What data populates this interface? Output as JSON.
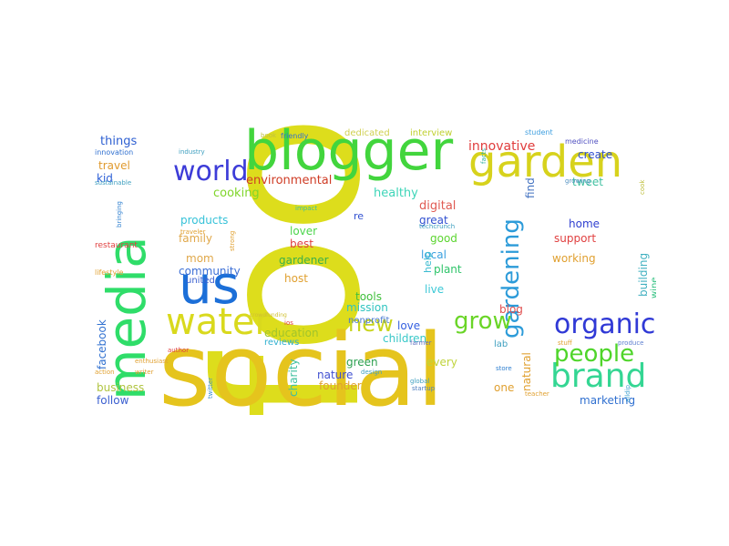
{
  "words": [
    {
      "text": "food",
      "color": "#dddd1c"
    },
    {
      "text": "social",
      "color": "#e5c41d"
    },
    {
      "text": "blogger",
      "color": "#42d53d"
    },
    {
      "text": "media",
      "color": "#2fdd69"
    },
    {
      "text": "us",
      "color": "#1c6fd8"
    },
    {
      "text": "garden",
      "color": "#d7d21c"
    },
    {
      "text": "water",
      "color": "#d9d91d"
    },
    {
      "text": "brand",
      "color": "#34d693"
    },
    {
      "text": "world",
      "color": "#3d3cd8"
    },
    {
      "text": "organic",
      "color": "#3039d6"
    },
    {
      "text": "people",
      "color": "#4fd52a"
    },
    {
      "text": "gardening",
      "color": "#2c9bd9"
    },
    {
      "text": "grow",
      "color": "#6ad527"
    },
    {
      "text": "new",
      "color": "#c8d41c"
    },
    {
      "text": "innovative",
      "color": "#e03c3c"
    },
    {
      "text": "environmental",
      "color": "#cf3c25"
    },
    {
      "text": "cooking",
      "color": "#7fd52a"
    },
    {
      "text": "healthy",
      "color": "#3ed5b8"
    },
    {
      "text": "digital",
      "color": "#e05a52"
    },
    {
      "text": "things",
      "color": "#2e60d2"
    },
    {
      "text": "travel",
      "color": "#e09a2e"
    },
    {
      "text": "kid",
      "color": "#2b5ed6"
    },
    {
      "text": "products",
      "color": "#36c2d8"
    },
    {
      "text": "family",
      "color": "#e0a84a"
    },
    {
      "text": "mom",
      "color": "#e0a84a"
    },
    {
      "text": "community",
      "color": "#3c6fd6"
    },
    {
      "text": "lover",
      "color": "#4cd54c"
    },
    {
      "text": "best",
      "color": "#e04040"
    },
    {
      "text": "gardener",
      "color": "#3db04a"
    },
    {
      "text": "host",
      "color": "#e0a030"
    },
    {
      "text": "great",
      "color": "#3050d0"
    },
    {
      "text": "good",
      "color": "#5cd530"
    },
    {
      "text": "local",
      "color": "#3aa0e0"
    },
    {
      "text": "plant",
      "color": "#2fc46a"
    },
    {
      "text": "live",
      "color": "#3cc8d6"
    },
    {
      "text": "help",
      "color": "#3abbd0"
    },
    {
      "text": "tools",
      "color": "#40c03c"
    },
    {
      "text": "mission",
      "color": "#30c4c0"
    },
    {
      "text": "education",
      "color": "#a0c42c"
    },
    {
      "text": "nonprofit",
      "color": "#4a7ad0"
    },
    {
      "text": "love",
      "color": "#3560e0"
    },
    {
      "text": "children",
      "color": "#38c8c8"
    },
    {
      "text": "green",
      "color": "#2ca050"
    },
    {
      "text": "every",
      "color": "#c0d43c"
    },
    {
      "text": "nature",
      "color": "#4050d0"
    },
    {
      "text": "founder",
      "color": "#e0a030"
    },
    {
      "text": "business",
      "color": "#b0c440"
    },
    {
      "text": "follow",
      "color": "#3c60d0"
    },
    {
      "text": "charity",
      "color": "#40c0a0"
    },
    {
      "text": "reviews",
      "color": "#30b0d0"
    },
    {
      "text": "home",
      "color": "#3040d0"
    },
    {
      "text": "support",
      "color": "#e04040"
    },
    {
      "text": "working",
      "color": "#e0a030"
    },
    {
      "text": "building",
      "color": "#40b0c0"
    },
    {
      "text": "create",
      "color": "#3050d0"
    },
    {
      "text": "tweet",
      "color": "#40c0a0"
    },
    {
      "text": "find",
      "color": "#4070c0"
    },
    {
      "text": "marketing",
      "color": "#3070d0"
    },
    {
      "text": "natural",
      "color": "#e0a030"
    },
    {
      "text": "one",
      "color": "#e0a030"
    },
    {
      "text": "lab",
      "color": "#40a0c0"
    },
    {
      "text": "blog",
      "color": "#e05050"
    },
    {
      "text": "facebook",
      "color": "#3070d0"
    },
    {
      "text": "dedicated",
      "color": "#d0d050"
    },
    {
      "text": "interview",
      "color": "#c0d030"
    },
    {
      "text": "united",
      "color": "#3c60d0"
    },
    {
      "text": "re",
      "color": "#3050d0"
    },
    {
      "text": "wine",
      "color": "#30c080"
    },
    {
      "text": "restaurant",
      "color": "#e04040"
    },
    {
      "text": "innovation",
      "color": "#3070d0"
    },
    {
      "text": "sustainable",
      "color": "#40a0c0"
    },
    {
      "text": "student",
      "color": "#40a0e0"
    },
    {
      "text": "medicine",
      "color": "#5050c0"
    },
    {
      "text": "friendly",
      "color": "#3070d0"
    },
    {
      "text": "book",
      "color": "#c0c040"
    },
    {
      "text": "industry",
      "color": "#40a0c0"
    },
    {
      "text": "lifestyle",
      "color": "#e0a030"
    },
    {
      "text": "facts",
      "color": "#30b0a0"
    },
    {
      "text": "startup",
      "color": "#5080c0"
    },
    {
      "text": "teacher",
      "color": "#e0a030"
    },
    {
      "text": "stuff",
      "color": "#e0a030"
    },
    {
      "text": "produce",
      "color": "#6080d0"
    },
    {
      "text": "action",
      "color": "#e0a030"
    },
    {
      "text": "writer",
      "color": "#e0a030"
    },
    {
      "text": "twitter",
      "color": "#4090d0"
    },
    {
      "text": "store",
      "color": "#3080d0"
    },
    {
      "text": "enthusiast",
      "color": "#e0a030"
    },
    {
      "text": "design",
      "color": "#40a0c0"
    },
    {
      "text": "author",
      "color": "#e04040"
    },
    {
      "text": "farmer",
      "color": "#6070c0"
    },
    {
      "text": "impact",
      "color": "#40c0a0"
    },
    {
      "text": "strong",
      "color": "#e0a030"
    },
    {
      "text": "traveler",
      "color": "#e0a030"
    },
    {
      "text": "bringing",
      "color": "#3080d0"
    },
    {
      "text": "techcrunch",
      "color": "#40a0c0"
    },
    {
      "text": "cook",
      "color": "#c0c040"
    },
    {
      "text": "growing",
      "color": "#5090c0"
    },
    {
      "text": "global",
      "color": "#40a0c0"
    },
    {
      "text": "crowdfunding",
      "color": "#d0c030"
    },
    {
      "text": "ios",
      "color": "#e04040"
    },
    {
      "text": "alldip",
      "color": "#40a0d0"
    }
  ]
}
